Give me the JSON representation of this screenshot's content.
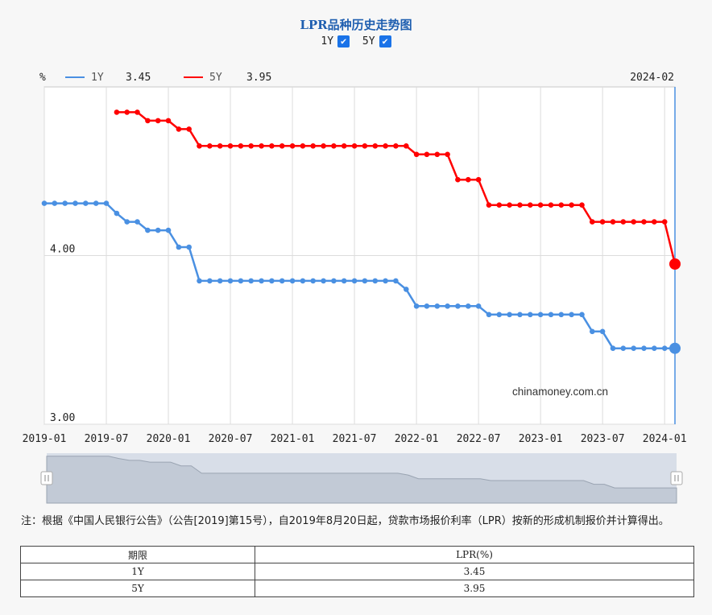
{
  "title": "LPR品种历史走势图",
  "toggles": [
    {
      "label": "1Y",
      "checked": true
    },
    {
      "label": "5Y",
      "checked": true
    }
  ],
  "legend": {
    "unit": "%",
    "items": [
      {
        "name": "1Y",
        "value": "3.45",
        "color": "#4a90e2"
      },
      {
        "name": "5Y",
        "value": "3.95",
        "color": "#ff0000"
      }
    ],
    "date": "2024-02"
  },
  "watermark": "chinamoney.com.cn",
  "chart_data": {
    "type": "line",
    "ylabel": "%",
    "ylim": [
      3.0,
      5.0
    ],
    "ytick_labels": [
      "4.00",
      "3.00"
    ],
    "xtick_labels": [
      "2019-01",
      "2019-07",
      "2020-01",
      "2020-07",
      "2021-01",
      "2021-07",
      "2022-01",
      "2022-07",
      "2023-01",
      "2023-07",
      "2024-01"
    ],
    "x": [
      "2019-01",
      "2019-02",
      "2019-03",
      "2019-04",
      "2019-05",
      "2019-06",
      "2019-07",
      "2019-08",
      "2019-09",
      "2019-10",
      "2019-11",
      "2019-12",
      "2020-01",
      "2020-02",
      "2020-03",
      "2020-04",
      "2020-05",
      "2020-06",
      "2020-07",
      "2020-08",
      "2020-09",
      "2020-10",
      "2020-11",
      "2020-12",
      "2021-01",
      "2021-02",
      "2021-03",
      "2021-04",
      "2021-05",
      "2021-06",
      "2021-07",
      "2021-08",
      "2021-09",
      "2021-10",
      "2021-11",
      "2021-12",
      "2022-01",
      "2022-02",
      "2022-03",
      "2022-04",
      "2022-05",
      "2022-06",
      "2022-07",
      "2022-08",
      "2022-09",
      "2022-10",
      "2022-11",
      "2022-12",
      "2023-01",
      "2023-02",
      "2023-03",
      "2023-04",
      "2023-05",
      "2023-06",
      "2023-07",
      "2023-08",
      "2023-09",
      "2023-10",
      "2023-11",
      "2023-12",
      "2024-01",
      "2024-02"
    ],
    "series": [
      {
        "name": "1Y",
        "color": "#4a90e2",
        "values": [
          4.31,
          4.31,
          4.31,
          4.31,
          4.31,
          4.31,
          4.31,
          4.25,
          4.2,
          4.2,
          4.15,
          4.15,
          4.15,
          4.05,
          4.05,
          3.85,
          3.85,
          3.85,
          3.85,
          3.85,
          3.85,
          3.85,
          3.85,
          3.85,
          3.85,
          3.85,
          3.85,
          3.85,
          3.85,
          3.85,
          3.85,
          3.85,
          3.85,
          3.85,
          3.85,
          3.8,
          3.7,
          3.7,
          3.7,
          3.7,
          3.7,
          3.7,
          3.7,
          3.65,
          3.65,
          3.65,
          3.65,
          3.65,
          3.65,
          3.65,
          3.65,
          3.65,
          3.65,
          3.55,
          3.55,
          3.45,
          3.45,
          3.45,
          3.45,
          3.45,
          3.45,
          3.45
        ]
      },
      {
        "name": "5Y",
        "color": "#ff0000",
        "values": [
          null,
          null,
          null,
          null,
          null,
          null,
          null,
          4.85,
          4.85,
          4.85,
          4.8,
          4.8,
          4.8,
          4.75,
          4.75,
          4.65,
          4.65,
          4.65,
          4.65,
          4.65,
          4.65,
          4.65,
          4.65,
          4.65,
          4.65,
          4.65,
          4.65,
          4.65,
          4.65,
          4.65,
          4.65,
          4.65,
          4.65,
          4.65,
          4.65,
          4.65,
          4.6,
          4.6,
          4.6,
          4.6,
          4.45,
          4.45,
          4.45,
          4.3,
          4.3,
          4.3,
          4.3,
          4.3,
          4.3,
          4.3,
          4.3,
          4.3,
          4.3,
          4.2,
          4.2,
          4.2,
          4.2,
          4.2,
          4.2,
          4.2,
          4.2,
          3.95
        ]
      }
    ]
  },
  "footnote": "注：根据《中国人民银行公告》（公告[2019]第15号），自2019年8月20日起，贷款市场报价利率（LPR）按新的形成机制报价并计算得出。",
  "table": {
    "headers": [
      "期限",
      "LPR(%)"
    ],
    "rows": [
      [
        "1Y",
        "3.45"
      ],
      [
        "5Y",
        "3.95"
      ]
    ]
  }
}
